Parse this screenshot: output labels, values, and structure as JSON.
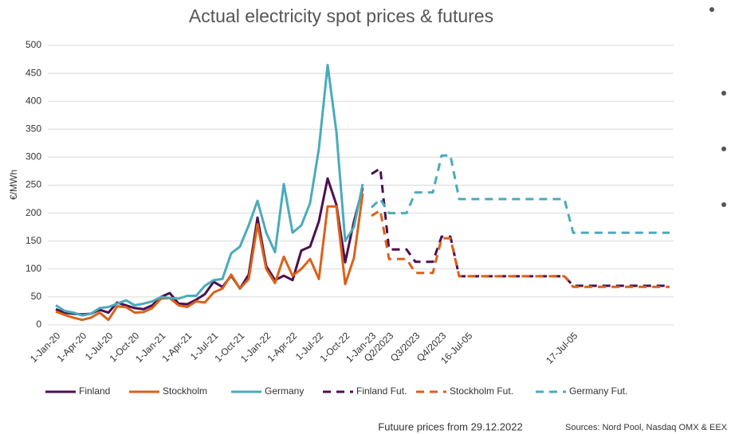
{
  "chart_data": {
    "type": "line",
    "title": "Actual electricity spot prices & futures",
    "y_label": "€/MWh",
    "note": "Futuure prices from 29.12.2022",
    "source": "Sources: Nord Pool, Nasdaq OMX & EEX",
    "ylim": [
      0,
      500
    ],
    "yticks": [
      0,
      50,
      100,
      150,
      200,
      250,
      300,
      350,
      400,
      450,
      500
    ],
    "grid": true,
    "categories": [
      "1-Jan-20",
      null,
      null,
      "1-Apr-20",
      null,
      null,
      "1-Jul-20",
      null,
      null,
      "1-Oct-20",
      null,
      null,
      "1-Jan-21",
      null,
      null,
      "1-Apr-21",
      null,
      null,
      "1-Jul-21",
      null,
      null,
      "1-Oct-21",
      null,
      null,
      "1-Jan-22",
      null,
      null,
      "1-Apr-22",
      null,
      null,
      "1-Jul-22",
      null,
      null,
      "1-Oct-22",
      null,
      null,
      "1-Jan-23",
      null,
      "Q2/2023",
      null,
      null,
      "Q3/2023",
      null,
      null,
      "Q4/2023",
      null,
      null,
      "16-Jul-05",
      null,
      null,
      null,
      null,
      null,
      null,
      null,
      null,
      null,
      null,
      null,
      "17-Jul-05",
      null,
      null,
      null,
      null,
      null,
      null,
      null,
      null,
      null,
      null,
      null
    ],
    "series": [
      {
        "name": "Finland",
        "color": "#4b1050",
        "dashed": false,
        "values": [
          28,
          22,
          20,
          19,
          20,
          27,
          22,
          40,
          35,
          30,
          28,
          35,
          50,
          57,
          38,
          37,
          45,
          55,
          77,
          68,
          88,
          65,
          90,
          192,
          105,
          80,
          88,
          80,
          133,
          140,
          185,
          262,
          215,
          112,
          185,
          245,
          null,
          null,
          null,
          null,
          null,
          null,
          null,
          null,
          null,
          null,
          null,
          null,
          null,
          null,
          null,
          null,
          null,
          null,
          null,
          null,
          null,
          null,
          null,
          null,
          null,
          null,
          null,
          null,
          null,
          null,
          null,
          null,
          null,
          null,
          null
        ]
      },
      {
        "name": "Stockholm",
        "color": "#d9621a",
        "dashed": false,
        "values": [
          24,
          18,
          13,
          9,
          13,
          22,
          9,
          33,
          32,
          22,
          23,
          30,
          47,
          48,
          35,
          32,
          42,
          40,
          58,
          65,
          90,
          65,
          82,
          180,
          100,
          75,
          122,
          88,
          100,
          118,
          82,
          212,
          212,
          73,
          120,
          235,
          null,
          null,
          null,
          null,
          null,
          null,
          null,
          null,
          null,
          null,
          null,
          null,
          null,
          null,
          null,
          null,
          null,
          null,
          null,
          null,
          null,
          null,
          null,
          null,
          null,
          null,
          null,
          null,
          null,
          null,
          null,
          null,
          null,
          null,
          null
        ]
      },
      {
        "name": "Germany",
        "color": "#4aabbb",
        "dashed": false,
        "values": [
          35,
          25,
          22,
          17,
          20,
          30,
          32,
          38,
          44,
          35,
          38,
          42,
          50,
          48,
          47,
          52,
          52,
          70,
          80,
          82,
          128,
          140,
          178,
          222,
          165,
          130,
          252,
          165,
          178,
          218,
          315,
          465,
          345,
          150,
          175,
          252,
          null,
          null,
          null,
          null,
          null,
          null,
          null,
          null,
          null,
          null,
          null,
          null,
          null,
          null,
          null,
          null,
          null,
          null,
          null,
          null,
          null,
          null,
          null,
          null,
          null,
          null,
          null,
          null,
          null,
          null,
          null,
          null,
          null,
          null,
          null
        ]
      },
      {
        "name": "Finland Fut.",
        "color": "#4b1050",
        "dashed": true,
        "values": [
          null,
          null,
          null,
          null,
          null,
          null,
          null,
          null,
          null,
          null,
          null,
          null,
          null,
          null,
          null,
          null,
          null,
          null,
          null,
          null,
          null,
          null,
          null,
          null,
          null,
          null,
          null,
          null,
          null,
          null,
          null,
          null,
          null,
          null,
          null,
          null,
          270,
          280,
          135,
          135,
          135,
          113,
          113,
          113,
          158,
          158,
          87,
          87,
          87,
          87,
          87,
          87,
          87,
          87,
          87,
          87,
          87,
          87,
          87,
          70,
          70,
          70,
          70,
          70,
          70,
          70,
          70,
          70,
          70,
          70,
          70
        ]
      },
      {
        "name": "Stockholm Fut.",
        "color": "#d9621a",
        "dashed": true,
        "values": [
          null,
          null,
          null,
          null,
          null,
          null,
          null,
          null,
          null,
          null,
          null,
          null,
          null,
          null,
          null,
          null,
          null,
          null,
          null,
          null,
          null,
          null,
          null,
          null,
          null,
          null,
          null,
          null,
          null,
          null,
          null,
          null,
          null,
          null,
          null,
          null,
          195,
          205,
          118,
          118,
          118,
          93,
          93,
          93,
          155,
          155,
          87,
          87,
          87,
          87,
          87,
          87,
          87,
          87,
          87,
          87,
          87,
          87,
          87,
          68,
          68,
          68,
          68,
          68,
          68,
          68,
          68,
          68,
          68,
          68,
          68
        ]
      },
      {
        "name": "Germany Fut.",
        "color": "#4aabbb",
        "dashed": true,
        "values": [
          null,
          null,
          null,
          null,
          null,
          null,
          null,
          null,
          null,
          null,
          null,
          null,
          null,
          null,
          null,
          null,
          null,
          null,
          null,
          null,
          null,
          null,
          null,
          null,
          null,
          null,
          null,
          null,
          null,
          null,
          null,
          null,
          null,
          null,
          null,
          null,
          210,
          225,
          200,
          200,
          200,
          237,
          237,
          237,
          303,
          303,
          225,
          225,
          225,
          225,
          225,
          225,
          225,
          225,
          225,
          225,
          225,
          225,
          225,
          165,
          165,
          165,
          165,
          165,
          165,
          165,
          165,
          165,
          165,
          165,
          165
        ]
      }
    ]
  }
}
